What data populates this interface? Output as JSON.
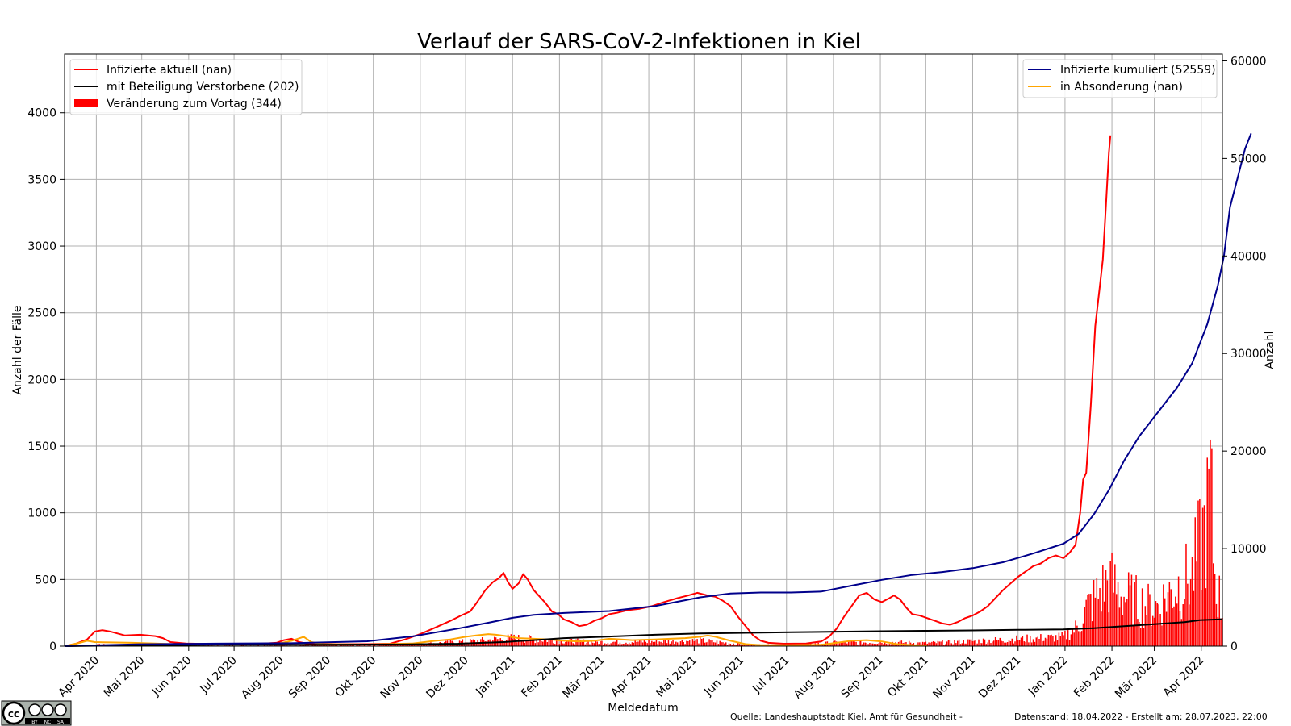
{
  "chart_data": {
    "type": "line",
    "title": "Verlauf der SARS-CoV-2-Infektionen in Kiel",
    "xlabel": "Meldedatum",
    "ylabel_left": "Anzahl der Fälle",
    "ylabel_right": "Anzahl",
    "ylim_left": [
      0,
      4440
    ],
    "ylim_right": [
      0,
      60700
    ],
    "yticks_left": [
      0,
      500,
      1000,
      1500,
      2000,
      2500,
      3000,
      3500,
      4000
    ],
    "yticks_right": [
      0,
      10000,
      20000,
      30000,
      40000,
      50000,
      60000
    ],
    "xlim_days": [
      0,
      765
    ],
    "x_origin_date": "2020-03-11",
    "grid": true,
    "x_ticks": [
      {
        "label": "Apr 2020",
        "day": 21
      },
      {
        "label": "Mai 2020",
        "day": 51
      },
      {
        "label": "Jun 2020",
        "day": 82
      },
      {
        "label": "Jul 2020",
        "day": 112
      },
      {
        "label": "Aug 2020",
        "day": 143
      },
      {
        "label": "Sep 2020",
        "day": 174
      },
      {
        "label": "Okt 2020",
        "day": 204
      },
      {
        "label": "Nov 2020",
        "day": 235
      },
      {
        "label": "Dez 2020",
        "day": 265
      },
      {
        "label": "Jan 2021",
        "day": 296
      },
      {
        "label": "Feb 2021",
        "day": 327
      },
      {
        "label": "Mär 2021",
        "day": 355
      },
      {
        "label": "Apr 2021",
        "day": 386
      },
      {
        "label": "Mai 2021",
        "day": 416
      },
      {
        "label": "Jun 2021",
        "day": 447
      },
      {
        "label": "Jul 2021",
        "day": 477
      },
      {
        "label": "Aug 2021",
        "day": 508
      },
      {
        "label": "Sep 2021",
        "day": 539
      },
      {
        "label": "Okt 2021",
        "day": 569
      },
      {
        "label": "Nov 2021",
        "day": 600
      },
      {
        "label": "Dez 2021",
        "day": 630
      },
      {
        "label": "Jan 2022",
        "day": 661
      },
      {
        "label": "Feb 2022",
        "day": 692
      },
      {
        "label": "Mär 2022",
        "day": 720
      },
      {
        "label": "Apr 2022",
        "day": 751
      }
    ],
    "legend_left": {
      "position": "upper-left",
      "items": [
        {
          "label": "Infizierte aktuell (nan)",
          "color": "#ff0000",
          "kind": "line"
        },
        {
          "label": "mit Beteiligung Verstorbene (202)",
          "color": "#000000",
          "kind": "line"
        },
        {
          "label": "Veränderung zum Vortag (344)",
          "color": "#ff0000",
          "kind": "bar"
        }
      ]
    },
    "legend_right": {
      "position": "upper-right",
      "items": [
        {
          "label": "Infizierte kumuliert (52559)",
          "color": "#00008b",
          "kind": "line"
        },
        {
          "label": "in Absonderung (nan)",
          "color": "#ffa500",
          "kind": "line"
        }
      ]
    },
    "series": [
      {
        "name": "Infizierte aktuell",
        "axis": "left",
        "color": "#ff0000",
        "kind": "line",
        "points": [
          [
            0,
            0
          ],
          [
            8,
            20
          ],
          [
            15,
            50
          ],
          [
            20,
            110
          ],
          [
            25,
            120
          ],
          [
            30,
            110
          ],
          [
            40,
            80
          ],
          [
            50,
            85
          ],
          [
            60,
            75
          ],
          [
            65,
            60
          ],
          [
            70,
            30
          ],
          [
            80,
            20
          ],
          [
            100,
            15
          ],
          [
            130,
            18
          ],
          [
            140,
            25
          ],
          [
            145,
            45
          ],
          [
            150,
            55
          ],
          [
            155,
            30
          ],
          [
            160,
            20
          ],
          [
            180,
            15
          ],
          [
            200,
            15
          ],
          [
            215,
            18
          ],
          [
            225,
            50
          ],
          [
            235,
            90
          ],
          [
            245,
            140
          ],
          [
            255,
            190
          ],
          [
            262,
            230
          ],
          [
            268,
            260
          ],
          [
            272,
            320
          ],
          [
            278,
            420
          ],
          [
            283,
            480
          ],
          [
            287,
            510
          ],
          [
            290,
            550
          ],
          [
            293,
            480
          ],
          [
            296,
            430
          ],
          [
            300,
            470
          ],
          [
            303,
            540
          ],
          [
            306,
            500
          ],
          [
            310,
            420
          ],
          [
            314,
            370
          ],
          [
            318,
            320
          ],
          [
            322,
            260
          ],
          [
            326,
            240
          ],
          [
            330,
            200
          ],
          [
            335,
            180
          ],
          [
            340,
            150
          ],
          [
            345,
            160
          ],
          [
            350,
            190
          ],
          [
            355,
            210
          ],
          [
            360,
            240
          ],
          [
            365,
            250
          ],
          [
            372,
            270
          ],
          [
            380,
            280
          ],
          [
            388,
            300
          ],
          [
            396,
            330
          ],
          [
            405,
            360
          ],
          [
            412,
            380
          ],
          [
            418,
            400
          ],
          [
            425,
            380
          ],
          [
            430,
            370
          ],
          [
            435,
            340
          ],
          [
            440,
            300
          ],
          [
            445,
            220
          ],
          [
            450,
            150
          ],
          [
            455,
            80
          ],
          [
            460,
            40
          ],
          [
            465,
            25
          ],
          [
            475,
            18
          ],
          [
            490,
            20
          ],
          [
            500,
            35
          ],
          [
            505,
            70
          ],
          [
            510,
            130
          ],
          [
            515,
            220
          ],
          [
            520,
            300
          ],
          [
            525,
            380
          ],
          [
            530,
            400
          ],
          [
            535,
            350
          ],
          [
            540,
            330
          ],
          [
            545,
            360
          ],
          [
            548,
            380
          ],
          [
            552,
            350
          ],
          [
            556,
            290
          ],
          [
            560,
            240
          ],
          [
            565,
            230
          ],
          [
            570,
            210
          ],
          [
            575,
            190
          ],
          [
            580,
            170
          ],
          [
            585,
            160
          ],
          [
            590,
            180
          ],
          [
            595,
            210
          ],
          [
            600,
            230
          ],
          [
            605,
            260
          ],
          [
            610,
            300
          ],
          [
            615,
            360
          ],
          [
            620,
            420
          ],
          [
            625,
            470
          ],
          [
            630,
            520
          ],
          [
            635,
            560
          ],
          [
            640,
            600
          ],
          [
            645,
            620
          ],
          [
            650,
            660
          ],
          [
            655,
            680
          ],
          [
            660,
            660
          ],
          [
            664,
            700
          ],
          [
            668,
            760
          ],
          [
            671,
            1000
          ],
          [
            673,
            1250
          ],
          [
            675,
            1300
          ],
          [
            678,
            1800
          ],
          [
            681,
            2400
          ],
          [
            684,
            2700
          ],
          [
            686,
            2900
          ],
          [
            688,
            3300
          ],
          [
            690,
            3700
          ],
          [
            691,
            3830
          ]
        ]
      },
      {
        "name": "in Absonderung",
        "axis": "left",
        "color": "#ffa500",
        "kind": "line",
        "points": [
          [
            0,
            0
          ],
          [
            10,
            25
          ],
          [
            15,
            40
          ],
          [
            20,
            30
          ],
          [
            30,
            28
          ],
          [
            45,
            25
          ],
          [
            60,
            20
          ],
          [
            70,
            15
          ],
          [
            80,
            12
          ],
          [
            110,
            12
          ],
          [
            140,
            15
          ],
          [
            150,
            40
          ],
          [
            158,
            70
          ],
          [
            163,
            30
          ],
          [
            170,
            15
          ],
          [
            200,
            12
          ],
          [
            230,
            20
          ],
          [
            245,
            40
          ],
          [
            255,
            50
          ],
          [
            265,
            70
          ],
          [
            272,
            80
          ],
          [
            280,
            90
          ],
          [
            285,
            85
          ],
          [
            292,
            75
          ],
          [
            300,
            60
          ],
          [
            310,
            55
          ],
          [
            320,
            50
          ],
          [
            330,
            40
          ],
          [
            340,
            35
          ],
          [
            350,
            40
          ],
          [
            360,
            55
          ],
          [
            368,
            50
          ],
          [
            375,
            45
          ],
          [
            390,
            50
          ],
          [
            400,
            55
          ],
          [
            410,
            60
          ],
          [
            420,
            70
          ],
          [
            425,
            80
          ],
          [
            430,
            70
          ],
          [
            440,
            40
          ],
          [
            450,
            15
          ],
          [
            460,
            8
          ],
          [
            480,
            8
          ],
          [
            500,
            10
          ],
          [
            510,
            25
          ],
          [
            520,
            40
          ],
          [
            530,
            45
          ],
          [
            540,
            35
          ],
          [
            550,
            15
          ],
          [
            560,
            8
          ],
          [
            570,
            5
          ]
        ]
      },
      {
        "name": "mit Beteiligung Verstorbene",
        "axis": "left",
        "color": "#000000",
        "kind": "line",
        "points": [
          [
            0,
            0
          ],
          [
            30,
            5
          ],
          [
            60,
            8
          ],
          [
            100,
            10
          ],
          [
            160,
            11
          ],
          [
            220,
            13
          ],
          [
            260,
            18
          ],
          [
            290,
            30
          ],
          [
            310,
            45
          ],
          [
            330,
            60
          ],
          [
            360,
            72
          ],
          [
            390,
            85
          ],
          [
            420,
            95
          ],
          [
            450,
            100
          ],
          [
            480,
            104
          ],
          [
            510,
            108
          ],
          [
            540,
            112
          ],
          [
            570,
            115
          ],
          [
            600,
            118
          ],
          [
            630,
            122
          ],
          [
            660,
            125
          ],
          [
            680,
            135
          ],
          [
            700,
            150
          ],
          [
            720,
            165
          ],
          [
            740,
            180
          ],
          [
            750,
            195
          ],
          [
            765,
            202
          ]
        ]
      },
      {
        "name": "Infizierte kumuliert",
        "axis": "right",
        "color": "#00008b",
        "kind": "line",
        "points": [
          [
            0,
            0
          ],
          [
            25,
            100
          ],
          [
            50,
            200
          ],
          [
            100,
            260
          ],
          [
            150,
            300
          ],
          [
            200,
            500
          ],
          [
            230,
            1000
          ],
          [
            260,
            1800
          ],
          [
            280,
            2400
          ],
          [
            296,
            2900
          ],
          [
            310,
            3200
          ],
          [
            330,
            3400
          ],
          [
            360,
            3600
          ],
          [
            390,
            4100
          ],
          [
            420,
            5000
          ],
          [
            440,
            5400
          ],
          [
            460,
            5500
          ],
          [
            480,
            5500
          ],
          [
            500,
            5600
          ],
          [
            520,
            6200
          ],
          [
            540,
            6800
          ],
          [
            560,
            7300
          ],
          [
            580,
            7600
          ],
          [
            600,
            8000
          ],
          [
            620,
            8600
          ],
          [
            640,
            9500
          ],
          [
            660,
            10500
          ],
          [
            670,
            11500
          ],
          [
            680,
            13500
          ],
          [
            690,
            16000
          ],
          [
            700,
            19000
          ],
          [
            710,
            21500
          ],
          [
            720,
            23500
          ],
          [
            735,
            26500
          ],
          [
            745,
            29000
          ],
          [
            755,
            33000
          ],
          [
            762,
            37000
          ],
          [
            766,
            40000
          ],
          [
            770,
            45000
          ],
          [
            775,
            48000
          ],
          [
            780,
            51000
          ],
          [
            784,
            52559
          ]
        ]
      }
    ],
    "bars": {
      "name": "Veränderung zum Vortag",
      "axis": "left",
      "color": "#ff0000",
      "envelope": [
        [
          0,
          0
        ],
        [
          20,
          15
        ],
        [
          50,
          10
        ],
        [
          100,
          5
        ],
        [
          150,
          8
        ],
        [
          200,
          10
        ],
        [
          240,
          25
        ],
        [
          270,
          50
        ],
        [
          296,
          80
        ],
        [
          320,
          60
        ],
        [
          350,
          40
        ],
        [
          390,
          45
        ],
        [
          420,
          55
        ],
        [
          450,
          15
        ],
        [
          480,
          10
        ],
        [
          510,
          35
        ],
        [
          540,
          40
        ],
        [
          570,
          30
        ],
        [
          600,
          50
        ],
        [
          630,
          70
        ],
        [
          660,
          90
        ],
        [
          670,
          200
        ],
        [
          675,
          370
        ],
        [
          690,
          650
        ],
        [
          700,
          500
        ],
        [
          720,
          380
        ],
        [
          735,
          600
        ],
        [
          745,
          700
        ],
        [
          750,
          980
        ],
        [
          755,
          1290
        ],
        [
          757,
          1630
        ],
        [
          760,
          700
        ],
        [
          765,
          344
        ]
      ]
    }
  },
  "footer": {
    "source": "Quelle: Landeshauptstadt Kiel, Amt für Gesundheit   -",
    "datenstand": "Datenstand: 18.04.2022   -   Erstellt am: 28.07.2023, 22:00"
  },
  "license": {
    "cc_text": "cc",
    "by_text": "BY",
    "nc_text": "NC",
    "sa_text": "SA"
  }
}
